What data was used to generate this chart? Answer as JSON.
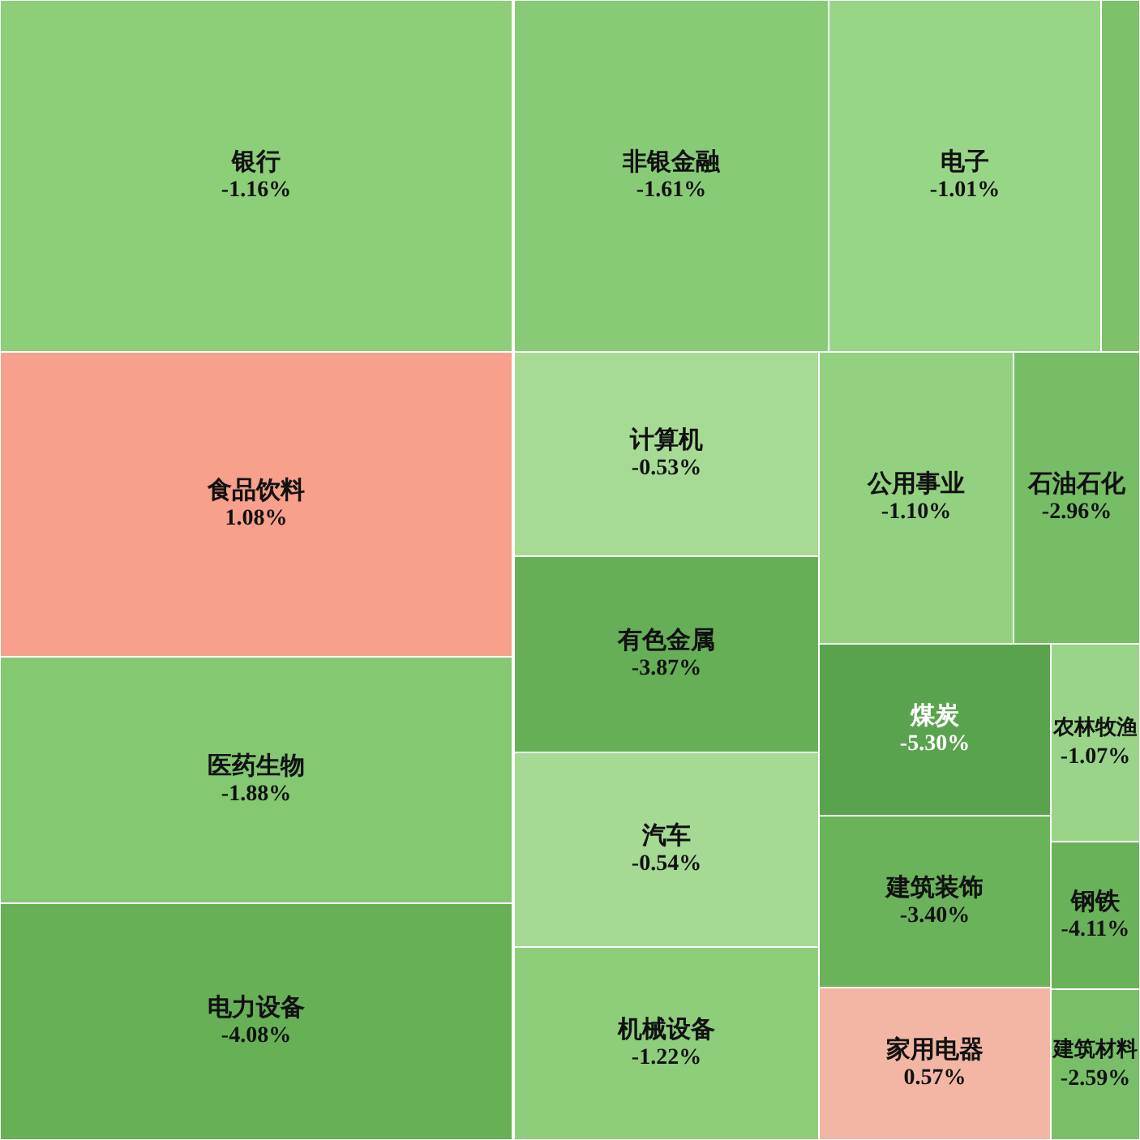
{
  "chart_data": {
    "type": "other",
    "categories": [
      "银行",
      "非银金融",
      "电子",
      null,
      "食品饮料",
      "医药生物",
      "电力设备",
      "计算机",
      "有色金属",
      "汽车",
      "机械设备",
      "公用事业",
      "石油石化",
      "煤炭",
      "建筑装饰",
      "家用电器",
      "农林牧渔",
      "钢铁",
      "建筑材料"
    ],
    "values": [
      -1.16,
      -1.61,
      -1.01,
      null,
      1.08,
      -1.88,
      -4.08,
      -0.53,
      -3.87,
      -0.54,
      -1.22,
      -1.1,
      -2.96,
      -5.3,
      -3.4,
      0.57,
      -1.07,
      -4.11,
      -2.59
    ],
    "value_labels": [
      "-1.16%",
      "-1.61%",
      "-1.01%",
      null,
      "1.08%",
      "-1.88%",
      "-4.08%",
      "-0.53%",
      "-3.87%",
      "-0.54%",
      "-1.22%",
      "-1.10%",
      "-2.96%",
      "-5.30%",
      "-3.40%",
      "0.57%",
      "-1.07%",
      "-4.11%",
      "-2.59%"
    ],
    "colors": [
      "#8dce79",
      "#88cb77",
      "#98d687",
      "#7dc16b",
      "#f7a08c",
      "#84c872",
      "#67b056",
      "#a7da95",
      "#66af57",
      "#a5d994",
      "#8ece7b",
      "#93d180",
      "#76bd65",
      "#5aa34e",
      "#6bb35b",
      "#f3b6a4",
      "#99d488",
      "#6ab25a",
      "#78bf67"
    ]
  }
}
